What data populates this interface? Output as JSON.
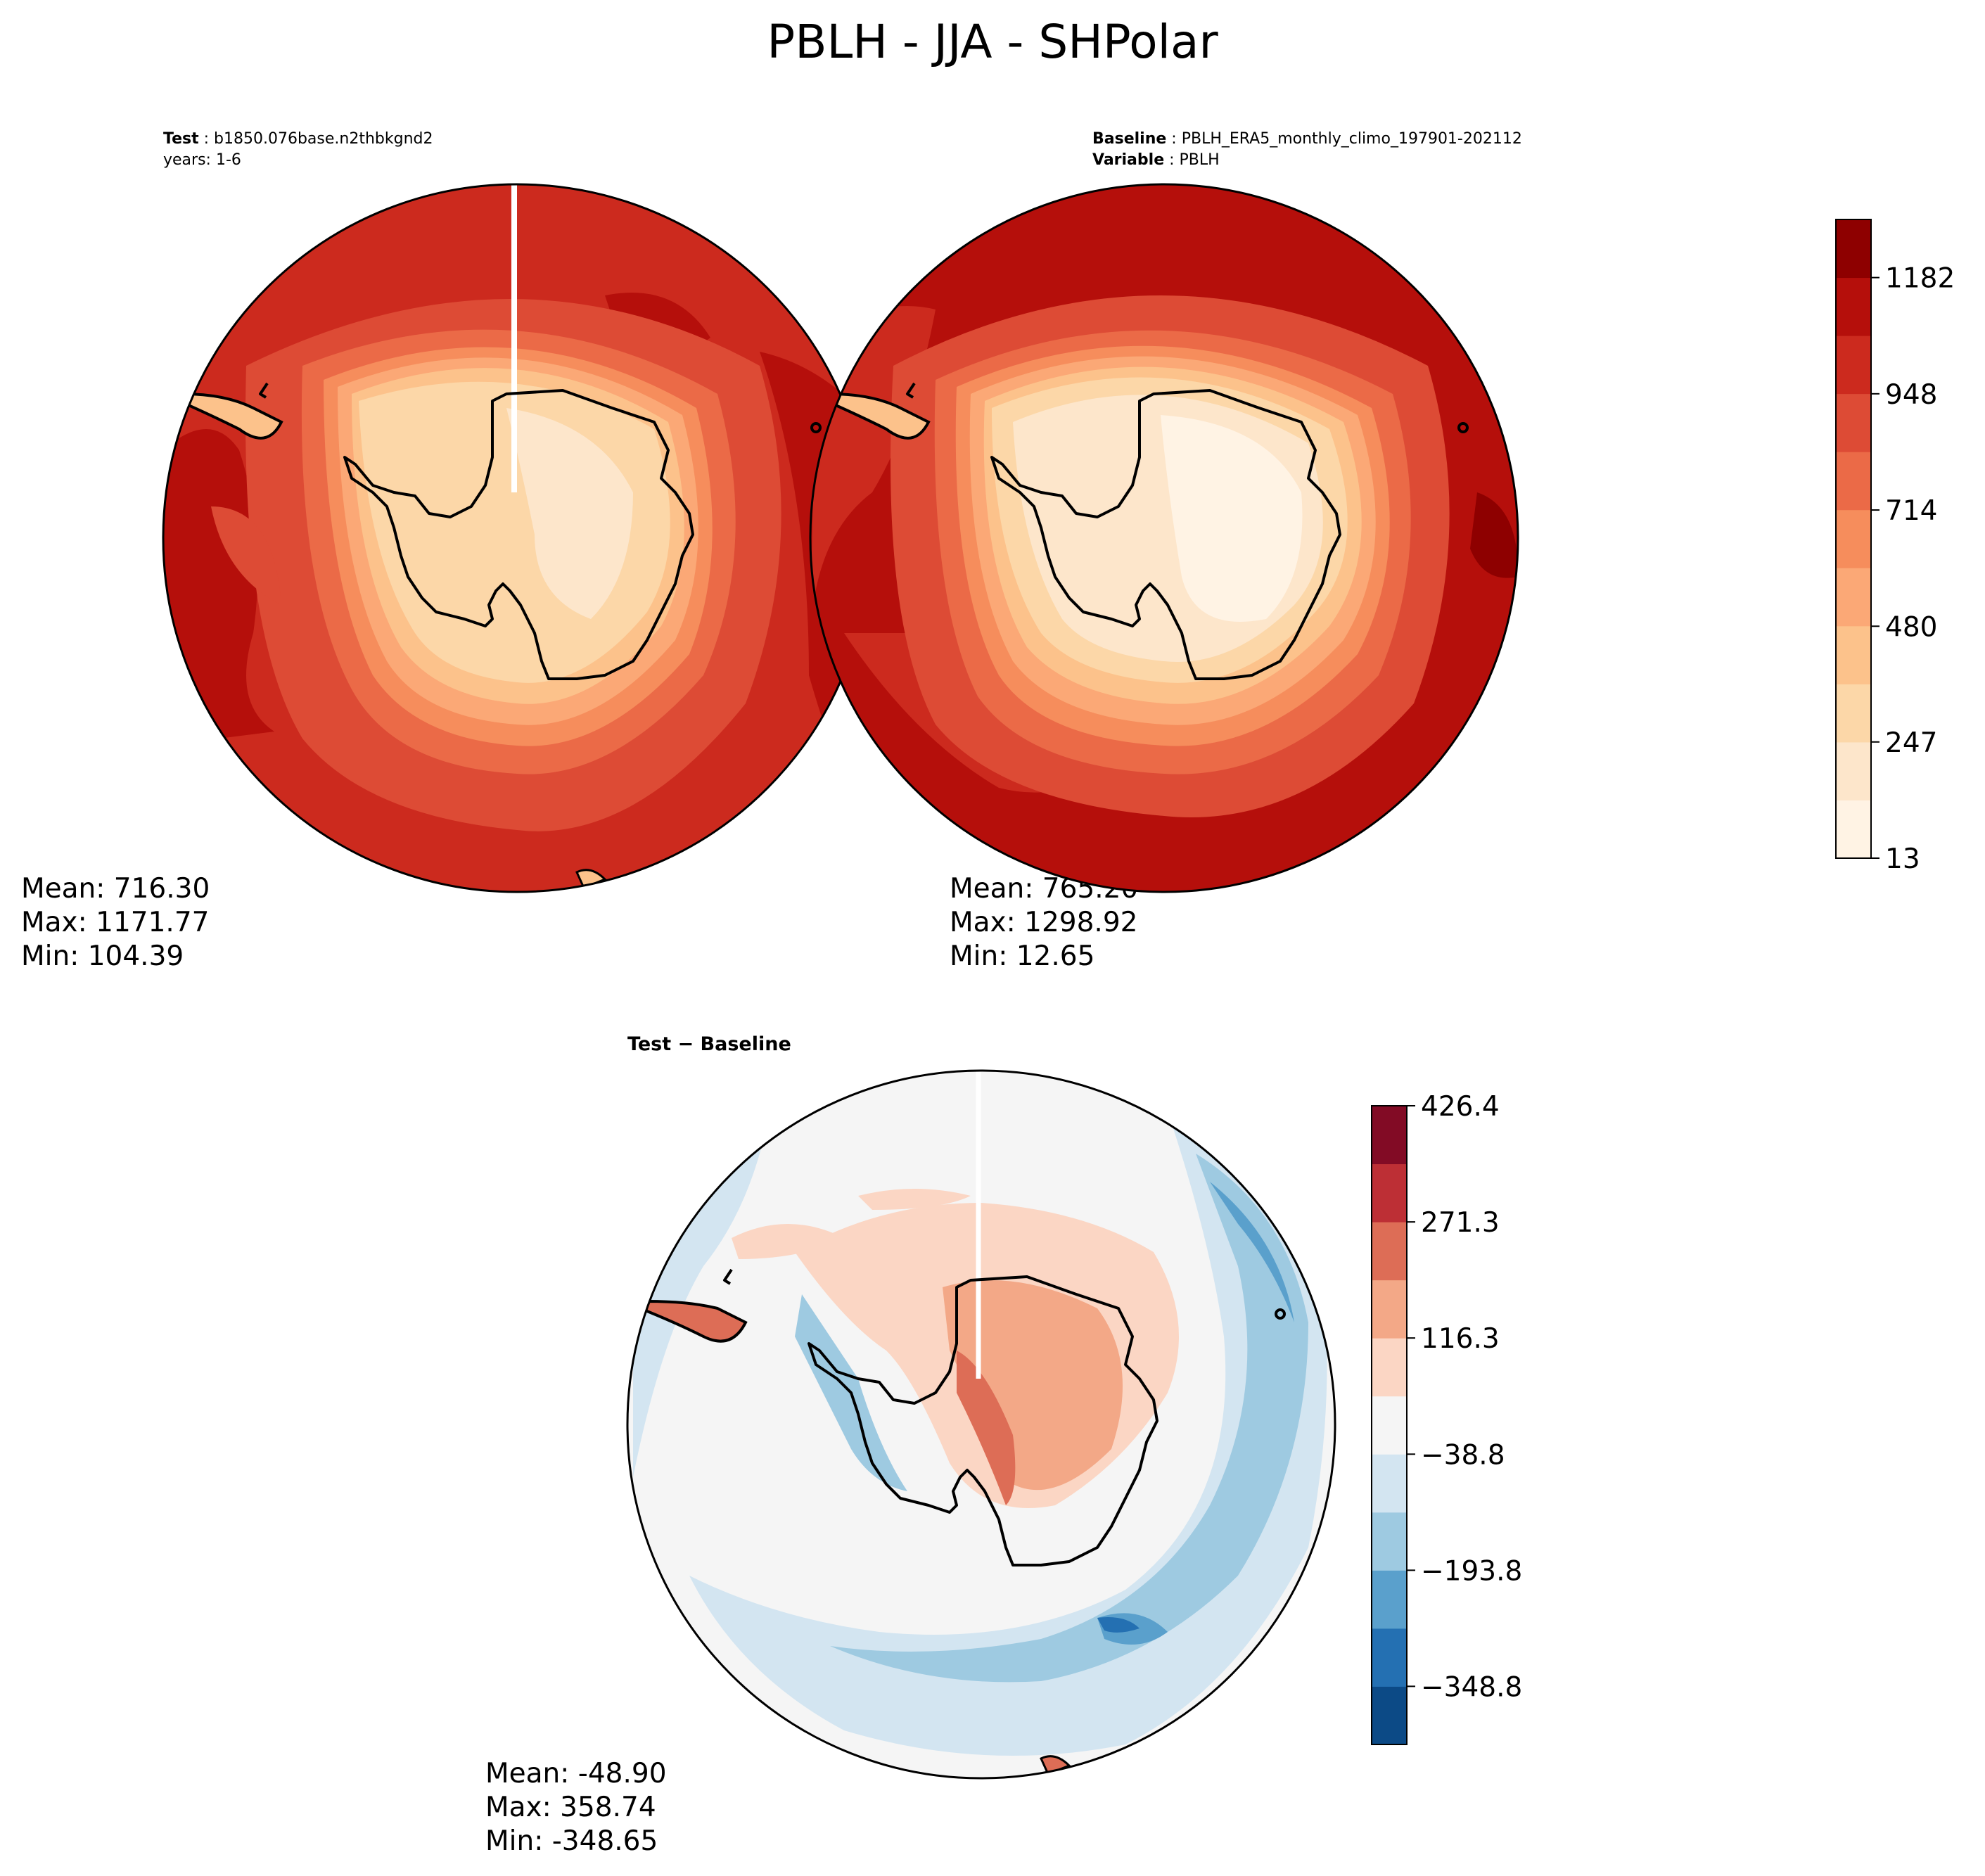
{
  "title": "PBLH - JJA - SHPolar",
  "panels": [
    {
      "id": "test",
      "header": [
        {
          "bold": "Test",
          "text": "b1850.076base.n2thbkgnd2"
        },
        {
          "bold": "",
          "text": "years: 1-6"
        }
      ],
      "stats": {
        "mean": "Mean: 716.30",
        "max": "Max: 1171.77",
        "min": "Min: 104.39"
      }
    },
    {
      "id": "baseline",
      "header": [
        {
          "bold": "Baseline",
          "text": "PBLH_ERA5_monthly_climo_197901-202112"
        },
        {
          "bold": "Variable",
          "text": "PBLH"
        }
      ],
      "stats": {
        "mean": "Mean: 765.20",
        "max": "Max: 1298.92",
        "min": "Min: 12.65"
      }
    },
    {
      "id": "diff",
      "header": [
        {
          "bold": "Test − Baseline",
          "text": ""
        }
      ],
      "stats": {
        "mean": "Mean: -48.90",
        "max": "Max: 358.74",
        "min": "Min: -348.65"
      }
    }
  ],
  "chart_data": [
    {
      "type": "heatmap",
      "projection": "south-polar-stereographic",
      "panel": "Test",
      "colorbar_shared_with": "Baseline",
      "mean": 716.3,
      "max": 1171.77,
      "min": 104.39
    },
    {
      "type": "heatmap",
      "projection": "south-polar-stereographic",
      "panel": "Baseline",
      "mean": 765.2,
      "max": 1298.92,
      "min": 12.65,
      "colorbar": {
        "colormap": "OrRd-like",
        "range": [
          13,
          1299
        ],
        "ticks": [
          "13",
          "247",
          "480",
          "714",
          "948",
          "1182"
        ],
        "tick_values": [
          13,
          247,
          480,
          714,
          948,
          1182
        ],
        "colors": [
          "#fff3e4",
          "#fde6cb",
          "#fcd7a8",
          "#fcc28b",
          "#fba876",
          "#f68d5c",
          "#eb6a47",
          "#dd4b35",
          "#cc2a1e",
          "#b50f0b",
          "#8e0000"
        ]
      }
    },
    {
      "type": "heatmap",
      "projection": "south-polar-stereographic",
      "panel": "Test − Baseline",
      "mean": -48.9,
      "max": 358.74,
      "min": -348.65,
      "colorbar": {
        "colormap": "RdBu_r",
        "range": [
          -426.4,
          426.4
        ],
        "ticks": [
          "426.4",
          "271.3",
          "116.3",
          "−38.8",
          "−193.8",
          "−348.8"
        ],
        "tick_values": [
          426.4,
          271.3,
          116.3,
          -38.8,
          -193.8,
          -348.8
        ],
        "colors": [
          "#0c4a86",
          "#2470b2",
          "#5aa0cc",
          "#9ecae1",
          "#d3e5f1",
          "#f5f5f5",
          "#fbd6c4",
          "#f3a887",
          "#dd6d56",
          "#bd2f35",
          "#820b25"
        ]
      }
    }
  ]
}
